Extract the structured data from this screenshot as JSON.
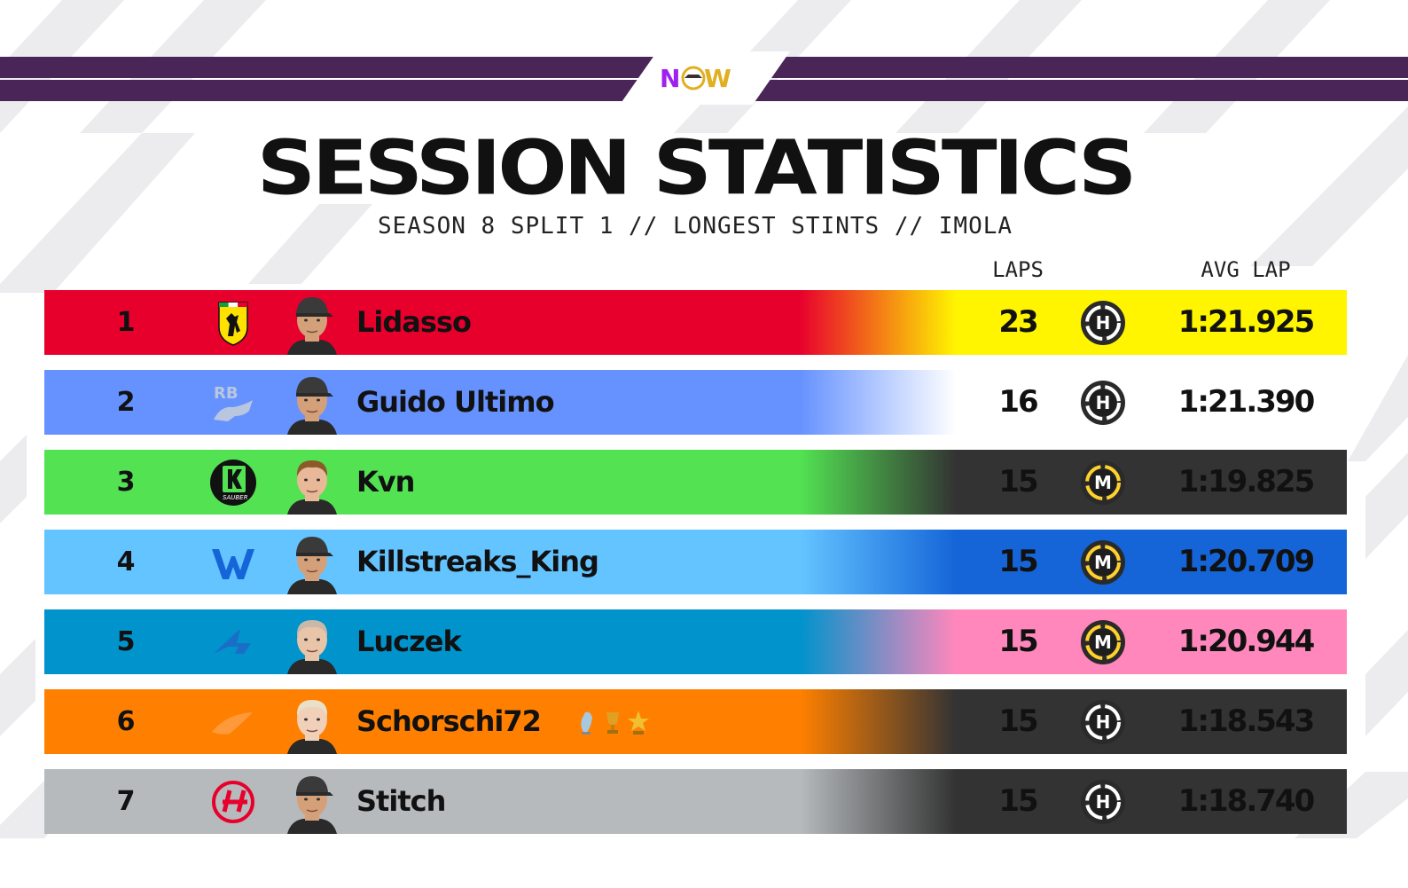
{
  "brand": {
    "logo_text": "NOW",
    "purple": "#4a2658",
    "stripe_color": "#ececee"
  },
  "header": {
    "title": "SESSION STATISTICS",
    "subtitle": "SEASON 8 SPLIT 1 // LONGEST STINTS // IMOLA"
  },
  "columns": {
    "laps": "LAPS",
    "avg_lap": "AVG LAP"
  },
  "rows": [
    {
      "pos": "1",
      "team_icon": "ferrari-icon",
      "name": "Lidasso",
      "laps": "23",
      "tyre": "H",
      "tyre_icon": "hard-tyre-icon",
      "avg": "1:21.925",
      "left_color": "#e8002d",
      "right_color": "#fff500",
      "text_color": "#111111"
    },
    {
      "pos": "2",
      "team_icon": "racing-bulls-icon",
      "name": "Guido Ultimo",
      "laps": "16",
      "tyre": "H",
      "tyre_icon": "hard-tyre-icon",
      "avg": "1:21.390",
      "left_color": "#6692ff",
      "right_color": "#ffffff",
      "text_color": "#111111"
    },
    {
      "pos": "3",
      "team_icon": "kick-sauber-icon",
      "name": "Kvn",
      "laps": "15",
      "tyre": "M",
      "tyre_icon": "medium-tyre-icon",
      "avg": "1:19.825",
      "left_color": "#52e252",
      "right_color": "#333333",
      "text_color": "#111111"
    },
    {
      "pos": "4",
      "team_icon": "williams-icon",
      "name": "Killstreaks_King",
      "laps": "15",
      "tyre": "M",
      "tyre_icon": "medium-tyre-icon",
      "avg": "1:20.709",
      "left_color": "#64c4ff",
      "right_color": "#1565d8",
      "text_color": "#111111"
    },
    {
      "pos": "5",
      "team_icon": "alpine-icon",
      "name": "Luczek",
      "laps": "15",
      "tyre": "M",
      "tyre_icon": "medium-tyre-icon",
      "avg": "1:20.944",
      "left_color": "#0093cc",
      "right_color": "#ff87bc",
      "text_color": "#111111"
    },
    {
      "pos": "6",
      "team_icon": "mclaren-icon",
      "name": "Schorschi72",
      "laps": "15",
      "tyre": "H",
      "tyre_icon": "hard-tyre-icon",
      "avg": "1:18.543",
      "left_color": "#ff8000",
      "right_color": "#333333",
      "text_color": "#111111",
      "has_trophies": true
    },
    {
      "pos": "7",
      "team_icon": "haas-icon",
      "name": "Stitch",
      "laps": "15",
      "tyre": "H",
      "tyre_icon": "hard-tyre-icon",
      "avg": "1:18.740",
      "left_color": "#b6babd",
      "right_color": "#333333",
      "text_color": "#111111"
    }
  ],
  "tyre_colors": {
    "hard": "#ffffff",
    "medium": "#ffd12e"
  }
}
